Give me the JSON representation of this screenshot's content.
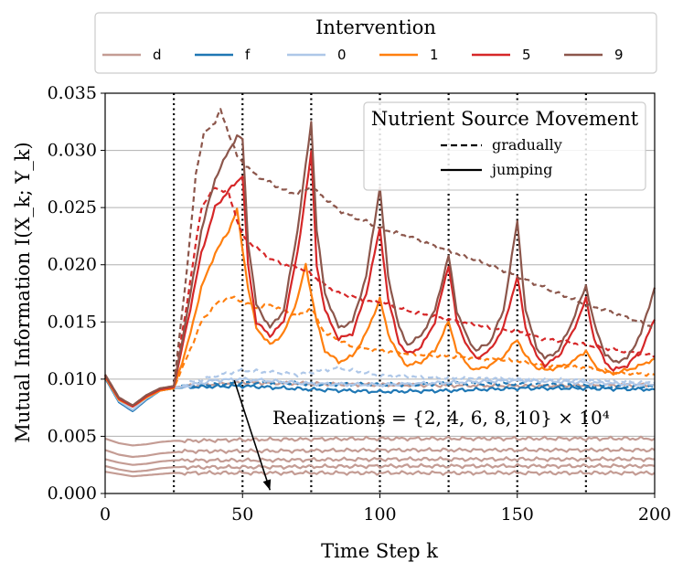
{
  "chart_data": {
    "type": "line",
    "title": "",
    "xlabel": "Time Step k",
    "ylabel": "Mutual Information I(X_k; Y_k)",
    "xlim": [
      0,
      200
    ],
    "ylim": [
      0.0,
      0.035
    ],
    "grid": "horizontal",
    "x_ticks": [
      "0",
      "50",
      "100",
      "150",
      "200"
    ],
    "y_ticks": [
      "0.000",
      "0.005",
      "0.010",
      "0.015",
      "0.020",
      "0.025",
      "0.030",
      "0.035"
    ],
    "vertical_markers": [
      25,
      50,
      75,
      100,
      125,
      150,
      175
    ],
    "intervention_legend": {
      "title": "Intervention",
      "placement": "top-center, above plot",
      "entries": [
        {
          "label": "d",
          "color": "#c49c94"
        },
        {
          "label": "f",
          "color": "#1f77b4"
        },
        {
          "label": "0",
          "color": "#aec7e8"
        },
        {
          "label": "1",
          "color": "#ff7f0e"
        },
        {
          "label": "5",
          "color": "#d62728"
        },
        {
          "label": "9",
          "color": "#8c564b"
        }
      ]
    },
    "style_legend": {
      "title": "Nutrient Source Movement",
      "placement": "upper-right",
      "entries": [
        {
          "label": "gradually",
          "style": "dashed"
        },
        {
          "label": "jumping",
          "style": "solid"
        }
      ]
    },
    "annotation": {
      "text": "Realizations = {2, 4, 6, 8, 10} × 10⁴",
      "arrow_from": [
        47,
        0.0099
      ],
      "arrow_to": [
        60,
        0.0003
      ]
    },
    "series": [
      {
        "name": "d (realizations 1)",
        "color": "#c49c94",
        "style": "solid",
        "x": [
          0,
          5,
          10,
          15,
          20,
          25,
          30,
          50,
          100,
          150,
          200
        ],
        "y": [
          0.0048,
          0.0044,
          0.0042,
          0.0043,
          0.0045,
          0.0046,
          0.0046,
          0.0047,
          0.0048,
          0.0048,
          0.0048
        ]
      },
      {
        "name": "d (realizations 2)",
        "color": "#c49c94",
        "style": "solid",
        "x": [
          0,
          5,
          10,
          15,
          20,
          25,
          30,
          50,
          100,
          150,
          200
        ],
        "y": [
          0.0038,
          0.0034,
          0.0032,
          0.0033,
          0.0035,
          0.0036,
          0.0037,
          0.0037,
          0.0038,
          0.0038,
          0.0038
        ]
      },
      {
        "name": "d (realizations 3)",
        "color": "#c49c94",
        "style": "solid",
        "x": [
          0,
          5,
          10,
          15,
          20,
          25,
          30,
          50,
          100,
          150,
          200
        ],
        "y": [
          0.003,
          0.0027,
          0.0025,
          0.0026,
          0.0028,
          0.0029,
          0.0029,
          0.0029,
          0.003,
          0.003,
          0.003
        ]
      },
      {
        "name": "d (realizations 4)",
        "color": "#c49c94",
        "style": "solid",
        "x": [
          0,
          5,
          10,
          15,
          20,
          25,
          30,
          50,
          100,
          150,
          200
        ],
        "y": [
          0.0024,
          0.0021,
          0.0019,
          0.002,
          0.0022,
          0.0023,
          0.0023,
          0.0023,
          0.0024,
          0.0024,
          0.0024
        ]
      },
      {
        "name": "d (realizations 5)",
        "color": "#c49c94",
        "style": "solid",
        "x": [
          0,
          5,
          10,
          15,
          20,
          25,
          30,
          50,
          100,
          150,
          200
        ],
        "y": [
          0.0019,
          0.0017,
          0.0015,
          0.0016,
          0.0017,
          0.0018,
          0.0018,
          0.0018,
          0.0018,
          0.0018,
          0.0018
        ]
      },
      {
        "name": "d (10^4 x10)",
        "color": "#c49c94",
        "style": "solid",
        "x": [
          0,
          5,
          10,
          15,
          20,
          25,
          30,
          50,
          100,
          150,
          200
        ],
        "y": [
          0.0103,
          0.0082,
          0.0077,
          0.0085,
          0.0091,
          0.0093,
          0.0094,
          0.0097,
          0.0095,
          0.0094,
          0.0095
        ]
      },
      {
        "name": "f jumping",
        "color": "#1f77b4",
        "style": "solid",
        "x": [
          0,
          5,
          10,
          15,
          20,
          25,
          30,
          50,
          75,
          100,
          125,
          150,
          175,
          200
        ],
        "y": [
          0.0101,
          0.008,
          0.0072,
          0.0082,
          0.009,
          0.0092,
          0.0093,
          0.0094,
          0.0091,
          0.0089,
          0.009,
          0.0092,
          0.0092,
          0.0091
        ]
      },
      {
        "name": "f gradually",
        "color": "#1f77b4",
        "style": "dashed",
        "x": [
          0,
          5,
          10,
          15,
          20,
          25,
          30,
          50,
          75,
          100,
          125,
          150,
          175,
          200
        ],
        "y": [
          0.0101,
          0.008,
          0.0072,
          0.0082,
          0.009,
          0.0092,
          0.0094,
          0.0097,
          0.0096,
          0.0095,
          0.0096,
          0.0096,
          0.0094,
          0.0093
        ]
      },
      {
        "name": "0 jumping",
        "color": "#aec7e8",
        "style": "solid",
        "x": [
          0,
          5,
          10,
          15,
          20,
          25,
          30,
          40,
          50,
          75,
          100,
          125,
          150,
          175,
          200
        ],
        "y": [
          0.0102,
          0.0081,
          0.0073,
          0.0083,
          0.009,
          0.0092,
          0.0094,
          0.0099,
          0.01,
          0.0096,
          0.0095,
          0.0097,
          0.0099,
          0.0097,
          0.0095
        ]
      },
      {
        "name": "0 gradually",
        "color": "#aec7e8",
        "style": "dashed",
        "x": [
          0,
          5,
          10,
          15,
          20,
          25,
          30,
          40,
          50,
          70,
          85,
          100,
          125,
          150,
          175,
          200
        ],
        "y": [
          0.0102,
          0.0081,
          0.0073,
          0.0083,
          0.009,
          0.0092,
          0.0096,
          0.0103,
          0.0108,
          0.0104,
          0.011,
          0.0103,
          0.0101,
          0.01,
          0.0099,
          0.0097
        ]
      },
      {
        "name": "1 jumping",
        "color": "#ff7f0e",
        "style": "solid",
        "x": [
          0,
          5,
          10,
          15,
          20,
          25,
          30,
          35,
          40,
          45,
          48,
          52,
          55,
          60,
          65,
          70,
          73,
          77,
          80,
          85,
          90,
          95,
          100,
          103,
          107,
          110,
          115,
          120,
          125,
          128,
          132,
          135,
          140,
          145,
          150,
          153,
          157,
          160,
          165,
          170,
          175,
          178,
          182,
          185,
          190,
          195,
          200
        ],
        "y": [
          0.0102,
          0.0082,
          0.0076,
          0.0084,
          0.009,
          0.0092,
          0.013,
          0.018,
          0.021,
          0.023,
          0.0248,
          0.018,
          0.0145,
          0.013,
          0.014,
          0.017,
          0.02,
          0.015,
          0.0125,
          0.0115,
          0.012,
          0.014,
          0.017,
          0.014,
          0.012,
          0.0112,
          0.0115,
          0.0125,
          0.015,
          0.0125,
          0.0112,
          0.0108,
          0.0112,
          0.012,
          0.0135,
          0.012,
          0.011,
          0.0108,
          0.011,
          0.0115,
          0.0125,
          0.0112,
          0.0106,
          0.0105,
          0.0108,
          0.0112,
          0.0118
        ]
      },
      {
        "name": "1 gradually",
        "color": "#ff7f0e",
        "style": "dashed",
        "x": [
          0,
          5,
          10,
          15,
          20,
          25,
          30,
          35,
          40,
          45,
          50,
          55,
          60,
          65,
          70,
          75,
          80,
          85,
          90,
          100,
          110,
          125,
          140,
          150,
          160,
          175,
          185,
          200
        ],
        "y": [
          0.0102,
          0.0082,
          0.0076,
          0.0084,
          0.009,
          0.0092,
          0.012,
          0.015,
          0.0165,
          0.0172,
          0.0168,
          0.0162,
          0.0165,
          0.016,
          0.0155,
          0.0162,
          0.014,
          0.0135,
          0.0128,
          0.0125,
          0.0122,
          0.012,
          0.0117,
          0.0116,
          0.0112,
          0.011,
          0.0106,
          0.0104
        ]
      },
      {
        "name": "5 jumping",
        "color": "#d62728",
        "style": "solid",
        "x": [
          0,
          5,
          10,
          15,
          20,
          25,
          30,
          35,
          40,
          45,
          50,
          52,
          55,
          60,
          65,
          70,
          75,
          77,
          80,
          85,
          90,
          95,
          100,
          103,
          107,
          110,
          115,
          120,
          125,
          128,
          132,
          135,
          140,
          145,
          150,
          153,
          157,
          160,
          165,
          170,
          175,
          178,
          182,
          185,
          190,
          195,
          200
        ],
        "y": [
          0.0103,
          0.0083,
          0.0076,
          0.0085,
          0.0091,
          0.0093,
          0.015,
          0.021,
          0.025,
          0.0265,
          0.0278,
          0.02,
          0.015,
          0.0138,
          0.015,
          0.021,
          0.0298,
          0.02,
          0.016,
          0.0135,
          0.014,
          0.0175,
          0.0232,
          0.017,
          0.0132,
          0.0122,
          0.0128,
          0.015,
          0.02,
          0.015,
          0.0128,
          0.0118,
          0.0125,
          0.0145,
          0.019,
          0.0145,
          0.012,
          0.0112,
          0.012,
          0.014,
          0.017,
          0.0135,
          0.0115,
          0.0108,
          0.0112,
          0.0125,
          0.0152
        ]
      },
      {
        "name": "5 gradually",
        "color": "#d62728",
        "style": "dashed",
        "x": [
          0,
          5,
          10,
          15,
          20,
          25,
          30,
          35,
          40,
          45,
          50,
          55,
          60,
          65,
          70,
          75,
          80,
          85,
          90,
          95,
          100,
          110,
          125,
          140,
          150,
          160,
          175,
          185,
          200
        ],
        "y": [
          0.0103,
          0.0083,
          0.0076,
          0.0085,
          0.0091,
          0.0093,
          0.017,
          0.025,
          0.0268,
          0.0262,
          0.0225,
          0.0215,
          0.0205,
          0.02,
          0.0198,
          0.0192,
          0.0182,
          0.0175,
          0.0172,
          0.0168,
          0.0168,
          0.016,
          0.0152,
          0.0145,
          0.0142,
          0.0135,
          0.013,
          0.0126,
          0.012
        ]
      },
      {
        "name": "9 jumping",
        "color": "#8c564b",
        "style": "solid",
        "x": [
          0,
          5,
          10,
          15,
          20,
          25,
          30,
          35,
          40,
          45,
          48,
          50,
          52,
          55,
          60,
          65,
          70,
          75,
          77,
          80,
          85,
          90,
          95,
          100,
          103,
          107,
          110,
          115,
          120,
          125,
          128,
          132,
          135,
          140,
          145,
          150,
          153,
          157,
          160,
          165,
          170,
          175,
          178,
          182,
          185,
          190,
          195,
          200
        ],
        "y": [
          0.0104,
          0.0084,
          0.0077,
          0.0086,
          0.0092,
          0.0094,
          0.016,
          0.023,
          0.0275,
          0.03,
          0.0312,
          0.031,
          0.022,
          0.0165,
          0.0145,
          0.016,
          0.023,
          0.0325,
          0.023,
          0.0175,
          0.0145,
          0.015,
          0.019,
          0.0268,
          0.019,
          0.0145,
          0.013,
          0.0138,
          0.016,
          0.0208,
          0.016,
          0.0135,
          0.0125,
          0.0132,
          0.016,
          0.0238,
          0.016,
          0.0128,
          0.0118,
          0.0125,
          0.015,
          0.0182,
          0.0148,
          0.0122,
          0.0115,
          0.0118,
          0.014,
          0.018
        ]
      },
      {
        "name": "9 gradually",
        "color": "#8c564b",
        "style": "dashed",
        "x": [
          0,
          5,
          10,
          15,
          20,
          25,
          30,
          33,
          36,
          40,
          42,
          45,
          48,
          52,
          55,
          60,
          65,
          70,
          75,
          80,
          85,
          90,
          95,
          100,
          110,
          125,
          140,
          150,
          160,
          175,
          185,
          200
        ],
        "y": [
          0.0104,
          0.0084,
          0.0077,
          0.0086,
          0.0092,
          0.0094,
          0.02,
          0.028,
          0.0315,
          0.0325,
          0.0335,
          0.0315,
          0.0295,
          0.0285,
          0.0278,
          0.0272,
          0.0265,
          0.0262,
          0.0268,
          0.0258,
          0.0248,
          0.0242,
          0.0238,
          0.0232,
          0.0225,
          0.0212,
          0.02,
          0.019,
          0.018,
          0.0165,
          0.0158,
          0.0145
        ]
      }
    ]
  }
}
